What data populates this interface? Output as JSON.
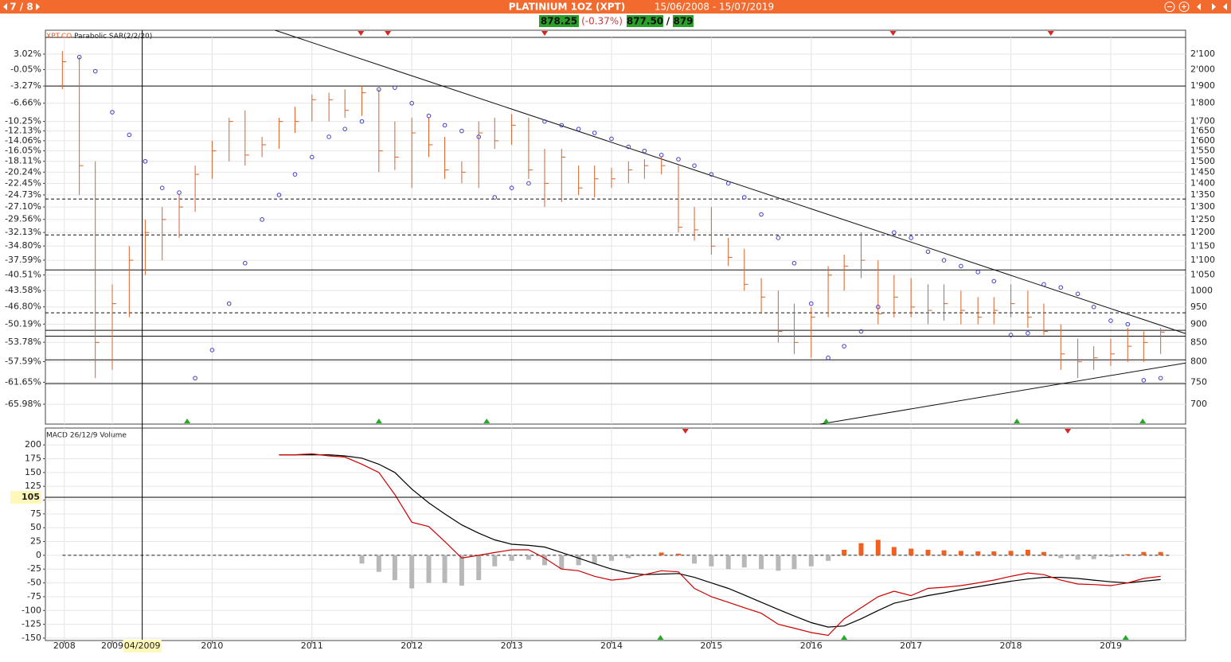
{
  "header": {
    "nav": "7 / 8",
    "title": "PLATINIUM 1OZ (XPT)",
    "range": "15/06/2008 - 15/07/2019"
  },
  "quote": {
    "last": "878.25",
    "change": "(-0.37%)",
    "bid": "877.50",
    "separator": "/",
    "ask": "879"
  },
  "chart_data": [
    {
      "type": "ohlc",
      "xlim": [
        2008.33,
        2019.75
      ],
      "x": [
        2008.5,
        2008.67,
        2008.83,
        2009,
        2009.17,
        2009.33,
        2009.5,
        2009.67,
        2009.83,
        2010,
        2010.17,
        2010.33,
        2010.5,
        2010.67,
        2010.83,
        2011,
        2011.17,
        2011.33,
        2011.5,
        2011.67,
        2011.83,
        2012,
        2012.17,
        2012.33,
        2012.5,
        2012.67,
        2012.83,
        2013,
        2013.17,
        2013.33,
        2013.5,
        2013.67,
        2013.83,
        2014,
        2014.17,
        2014.33,
        2014.5,
        2014.67,
        2014.83,
        2015,
        2015.17,
        2015.33,
        2015.5,
        2015.67,
        2015.83,
        2016,
        2016.17,
        2016.33,
        2016.5,
        2016.67,
        2016.83,
        2017,
        2017.17,
        2017.33,
        2017.5,
        2017.67,
        2017.83,
        2018,
        2018.17,
        2018.33,
        2018.5,
        2018.67,
        2018.83,
        2019,
        2019.17,
        2019.33,
        2019.5
      ],
      "ylim": [
        -69.9,
        7.72
      ],
      "yscale": "linear",
      "yticks": [
        {
          "value": 3.02,
          "label": "3.02%"
        },
        {
          "value": -0.05,
          "label": "-0.05%"
        },
        {
          "value": -3.27,
          "label": "-3.27%"
        },
        {
          "value": -6.66,
          "label": "-6.66%"
        },
        {
          "value": -10.25,
          "label": "-10.25%"
        },
        {
          "value": -12.13,
          "label": "-12.13%"
        },
        {
          "value": -14.06,
          "label": "-14.06%"
        },
        {
          "value": -16.05,
          "label": "-16.05%"
        },
        {
          "value": -18.11,
          "label": "-18.11%"
        },
        {
          "value": -20.24,
          "label": "-20.24%"
        },
        {
          "value": -22.45,
          "label": "-22.45%"
        },
        {
          "value": -24.73,
          "label": "-24.73%"
        },
        {
          "value": -27.1,
          "label": "-27.10%"
        },
        {
          "value": -29.56,
          "label": "-29.56%"
        },
        {
          "value": -32.13,
          "label": "-32.13%"
        },
        {
          "value": -34.8,
          "label": "-34.80%"
        },
        {
          "value": -37.59,
          "label": "-37.59%"
        },
        {
          "value": -40.51,
          "label": "-40.51%"
        },
        {
          "value": -43.58,
          "label": "-43.58%"
        },
        {
          "value": -46.8,
          "label": "-46.80%"
        },
        {
          "value": -50.19,
          "label": "-50.19%"
        },
        {
          "value": -53.78,
          "label": "-53.78%"
        },
        {
          "value": -57.59,
          "label": "-57.59%"
        },
        {
          "value": -61.65,
          "label": "-61.65%"
        },
        {
          "value": -65.98,
          "label": "-65.98%"
        }
      ],
      "y2lim": [
        658,
        2263
      ],
      "y2scale": "log",
      "y2ticks": [
        {
          "value": 2100,
          "label": "2'100"
        },
        {
          "value": 2000,
          "label": "2'000"
        },
        {
          "value": 1900,
          "label": "1'900"
        },
        {
          "value": 1800,
          "label": "1'800"
        },
        {
          "value": 1700,
          "label": "1'700"
        },
        {
          "value": 1650,
          "label": "1'650"
        },
        {
          "value": 1600,
          "label": "1'600"
        },
        {
          "value": 1550,
          "label": "1'550"
        },
        {
          "value": 1500,
          "label": "1'500"
        },
        {
          "value": 1450,
          "label": "1'450"
        },
        {
          "value": 1400,
          "label": "1'400"
        },
        {
          "value": 1350,
          "label": "1'350"
        },
        {
          "value": 1300,
          "label": "1'300"
        },
        {
          "value": 1250,
          "label": "1'250"
        },
        {
          "value": 1200,
          "label": "1'200"
        },
        {
          "value": 1150,
          "label": "1'150"
        },
        {
          "value": 1100,
          "label": "1'100"
        },
        {
          "value": 1050,
          "label": "1'050"
        },
        1000,
        950,
        900,
        850,
        800,
        750,
        700
      ],
      "grid": true,
      "series": [
        {
          "name": "XPT.CO",
          "color": "#d9622b",
          "axis": "y2",
          "high": [
            2120,
            2080,
            1500,
            1020,
            1150,
            1250,
            1300,
            1350,
            1480,
            1600,
            1720,
            1760,
            1620,
            1720,
            1780,
            1850,
            1860,
            1880,
            1900,
            1880,
            1700,
            1720,
            1720,
            1620,
            1500,
            1700,
            1720,
            1740,
            1720,
            1560,
            1560,
            1480,
            1480,
            1470,
            1500,
            1510,
            1520,
            1480,
            1300,
            1300,
            1180,
            1140,
            1040,
            1000,
            960,
            950,
            1080,
            1120,
            1200,
            1100,
            1050,
            1040,
            1020,
            1020,
            1000,
            980,
            980,
            1020,
            1000,
            960,
            900,
            860,
            840,
            860,
            890,
            880,
            890
          ],
          "low": [
            1880,
            1350,
            760,
            780,
            920,
            1050,
            1100,
            1180,
            1280,
            1420,
            1500,
            1480,
            1520,
            1560,
            1640,
            1700,
            1700,
            1720,
            1730,
            1450,
            1460,
            1380,
            1520,
            1420,
            1400,
            1380,
            1560,
            1580,
            1420,
            1300,
            1320,
            1350,
            1340,
            1380,
            1400,
            1420,
            1440,
            1200,
            1170,
            1120,
            1080,
            1000,
            930,
            850,
            820,
            810,
            920,
            1000,
            1040,
            900,
            920,
            920,
            900,
            910,
            900,
            900,
            900,
            920,
            890,
            870,
            780,
            760,
            780,
            790,
            800,
            800,
            820
          ],
          "close": [
            2050,
            1480,
            850,
            960,
            1100,
            1200,
            1250,
            1300,
            1440,
            1550,
            1700,
            1530,
            1580,
            1700,
            1700,
            1820,
            1820,
            1760,
            1860,
            1550,
            1520,
            1640,
            1580,
            1460,
            1450,
            1640,
            1600,
            1680,
            1460,
            1400,
            1520,
            1380,
            1420,
            1420,
            1460,
            1480,
            1480,
            1220,
            1210,
            1150,
            1110,
            1020,
            980,
            880,
            850,
            920,
            1050,
            1080,
            1100,
            930,
            980,
            950,
            940,
            960,
            940,
            920,
            940,
            960,
            920,
            880,
            820,
            800,
            810,
            820,
            840,
            850,
            878
          ]
        },
        {
          "name": "Parabolic SAR(2/2/20)",
          "color": "#4040c0",
          "axis": "y2",
          "values": [
            null,
            2080,
            1990,
            1750,
            1630,
            1500,
            1380,
            1360,
            760,
            830,
            960,
            1090,
            1250,
            1350,
            1440,
            1520,
            1620,
            1660,
            1700,
            1880,
            1890,
            1800,
            1730,
            1680,
            1650,
            1620,
            1340,
            1380,
            1400,
            1700,
            1680,
            1660,
            1640,
            1610,
            1570,
            1550,
            1530,
            1510,
            1480,
            1440,
            1400,
            1340,
            1270,
            1180,
            1090,
            960,
            810,
            840,
            880,
            950,
            1200,
            1180,
            1130,
            1100,
            1080,
            1060,
            1030,
            870,
            875,
            1020,
            1010,
            990,
            950,
            910,
            900,
            755,
            760
          ]
        }
      ],
      "hlines": [
        {
          "value": 1900,
          "style": "solid"
        },
        {
          "value": 1333,
          "style": "dashed"
        },
        {
          "value": 1191,
          "style": "dashed"
        },
        {
          "value": 1067,
          "style": "solid"
        },
        {
          "value": 933,
          "style": "dashed"
        },
        {
          "value": 883,
          "style": "solid"
        },
        {
          "value": 867,
          "style": "solid"
        },
        {
          "value": 805,
          "style": "solid"
        },
        {
          "value": 747,
          "style": "solid"
        }
      ],
      "trendlines": [
        {
          "from": [
            2010.63,
            2263
          ],
          "to": [
            2019.75,
            874
          ]
        },
        {
          "from": [
            2016.09,
            658
          ],
          "to": [
            2019.75,
            797
          ]
        }
      ],
      "sell_signals": [
        2011.49,
        2011.76,
        2013.33,
        2016.82,
        2018.4
      ],
      "buy_signals": [
        2009.75,
        2011.67,
        2012.75,
        2016.15,
        2018.06,
        2019.32
      ]
    },
    {
      "type": "macd",
      "title": "MACD 26/12/9 Volume",
      "xlim": [
        2008.33,
        2019.75
      ],
      "xticks": [
        {
          "value": 2008.52,
          "label": "2008"
        },
        2009,
        2010,
        2011,
        2012,
        2013,
        2014,
        2015,
        2016,
        2017,
        2018,
        2019
      ],
      "x": [
        2008.5,
        2008.67,
        2008.83,
        2009,
        2009.17,
        2009.33,
        2009.5,
        2009.67,
        2009.83,
        2010,
        2010.17,
        2010.33,
        2010.5,
        2010.67,
        2010.83,
        2011,
        2011.17,
        2011.33,
        2011.5,
        2011.67,
        2011.83,
        2012,
        2012.17,
        2012.33,
        2012.5,
        2012.67,
        2012.83,
        2013,
        2013.17,
        2013.33,
        2013.5,
        2013.67,
        2013.83,
        2014,
        2014.17,
        2014.33,
        2014.5,
        2014.67,
        2014.83,
        2015,
        2015.17,
        2015.33,
        2015.5,
        2015.67,
        2015.83,
        2016,
        2016.17,
        2016.33,
        2016.5,
        2016.67,
        2016.83,
        2017,
        2017.17,
        2017.33,
        2017.5,
        2017.67,
        2017.83,
        2018,
        2018.17,
        2018.33,
        2018.5,
        2018.67,
        2018.83,
        2019,
        2019.17,
        2019.33,
        2019.5
      ],
      "ylim": [
        -154.4,
        230.5
      ],
      "yticks": [
        200,
        175,
        150,
        125,
        100,
        75,
        50,
        25,
        0,
        -25,
        -50,
        -75,
        -100,
        -125,
        -150
      ],
      "grid": true,
      "series": [
        {
          "color": "#cc0000",
          "values": [
            null,
            null,
            null,
            null,
            null,
            null,
            null,
            null,
            null,
            null,
            null,
            null,
            null,
            182,
            182,
            184,
            180,
            178,
            165,
            150,
            110,
            60,
            52,
            25,
            -5,
            0,
            5,
            10,
            10,
            -5,
            -25,
            -28,
            -38,
            -45,
            -42,
            -35,
            -28,
            -30,
            -60,
            -75,
            -85,
            -95,
            -105,
            -125,
            -132,
            -140,
            -145,
            -115,
            -95,
            -75,
            -65,
            -73,
            -60,
            -58,
            -55,
            -50,
            -45,
            -38,
            -32,
            -35,
            -45,
            -52,
            -53,
            -55,
            -50,
            -42,
            -38
          ]
        },
        {
          "color": "#000000",
          "values": [
            null,
            null,
            null,
            null,
            null,
            null,
            null,
            null,
            null,
            null,
            null,
            null,
            null,
            182,
            182,
            182,
            182,
            180,
            176,
            165,
            150,
            120,
            95,
            75,
            55,
            40,
            28,
            20,
            18,
            15,
            5,
            -5,
            -15,
            -25,
            -32,
            -35,
            -34,
            -33,
            -40,
            -50,
            -60,
            -72,
            -85,
            -98,
            -110,
            -122,
            -130,
            -128,
            -115,
            -100,
            -87,
            -80,
            -73,
            -68,
            -62,
            -57,
            -52,
            -47,
            -43,
            -40,
            -40,
            -42,
            -45,
            -48,
            -50,
            -47,
            -44
          ]
        },
        {
          "positive_color": "#f06020",
          "negative_color": "#b8b8b8",
          "values": [
            null,
            null,
            null,
            null,
            null,
            null,
            null,
            null,
            null,
            null,
            null,
            null,
            null,
            null,
            null,
            null,
            null,
            null,
            -15,
            -30,
            -45,
            -60,
            -50,
            -50,
            -55,
            -45,
            -20,
            -10,
            -8,
            -18,
            -25,
            -18,
            -15,
            -10,
            -5,
            0,
            5,
            3,
            -15,
            -20,
            -25,
            -22,
            -25,
            -28,
            -25,
            -20,
            -10,
            10,
            22,
            28,
            15,
            12,
            10,
            9,
            8,
            7,
            7,
            8,
            10,
            6,
            -5,
            -8,
            -7,
            -3,
            2,
            6,
            6
          ]
        }
      ],
      "crosshair_x": {
        "value": 2009.3,
        "label": "04/2009"
      },
      "crosshair_y": {
        "value": 105,
        "label": "105"
      },
      "sell_signals": [
        2014.74,
        2018.57
      ],
      "buy_signals": [
        2014.49,
        2016.33,
        2019.15
      ]
    }
  ]
}
